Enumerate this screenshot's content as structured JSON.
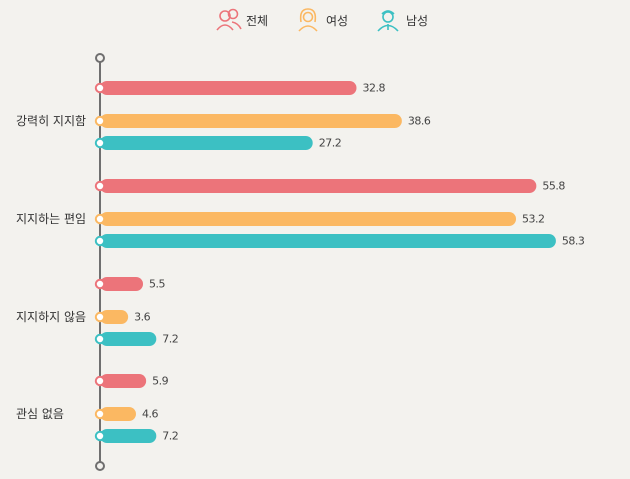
{
  "chart_data": {
    "type": "bar",
    "orientation": "horizontal",
    "categories": [
      "강력히 지지함",
      "지지하는 편임",
      "지지하지 않음",
      "관심 없음"
    ],
    "series": [
      {
        "name": "전체",
        "color": "#ec747a",
        "icon": "group-icon",
        "values": [
          32.8,
          55.8,
          5.5,
          5.9
        ],
        "labels": [
          "32.8",
          "55.8",
          "5.5",
          "5.9"
        ]
      },
      {
        "name": "여성",
        "color": "#fbb862",
        "icon": "woman-icon",
        "values": [
          38.6,
          53.2,
          3.6,
          4.6
        ],
        "labels": [
          "38.6",
          "53.2",
          "3.6",
          "4.6"
        ]
      },
      {
        "name": "남성",
        "color": "#3cc0c3",
        "icon": "man-icon",
        "values": [
          27.2,
          58.3,
          7.2,
          7.2
        ],
        "labels": [
          "27.2",
          "58.3",
          "7.2",
          "7.2"
        ]
      }
    ],
    "xlim": [
      0,
      60
    ],
    "legend": "top-center",
    "grid": false
  }
}
